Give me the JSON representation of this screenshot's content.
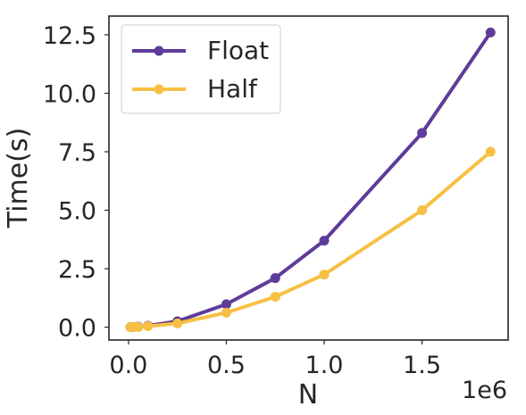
{
  "chart_data": {
    "type": "line",
    "title": "",
    "xlabel": "N",
    "ylabel": "Time(s)",
    "x_offset_label": "1e6",
    "x": [
      10000,
      25000,
      50000,
      100000,
      250000,
      500000,
      750000,
      1000000,
      1500000,
      1850000
    ],
    "series": [
      {
        "name": "Float",
        "color": "#5e3c99",
        "values": [
          0.0,
          0.01,
          0.02,
          0.06,
          0.25,
          0.98,
          2.1,
          3.7,
          8.3,
          12.6
        ]
      },
      {
        "name": "Half",
        "color": "#f7c043",
        "values": [
          0.0,
          0.01,
          0.01,
          0.04,
          0.16,
          0.62,
          1.3,
          2.25,
          5.0,
          7.5
        ]
      }
    ],
    "xlim": [
      -100000,
      1940000
    ],
    "ylim": [
      -0.55,
      13.3
    ],
    "xticks": [
      0,
      500000,
      1000000,
      1500000
    ],
    "xtick_labels": [
      "0.0",
      "0.5",
      "1.0",
      "1.5"
    ],
    "yticks": [
      0,
      2.5,
      5,
      7.5,
      10,
      12.5
    ],
    "ytick_labels": [
      "0.0",
      "2.5",
      "5.0",
      "7.5",
      "10.0",
      "12.5"
    ],
    "legend_position": "upper-left",
    "grid": false
  }
}
